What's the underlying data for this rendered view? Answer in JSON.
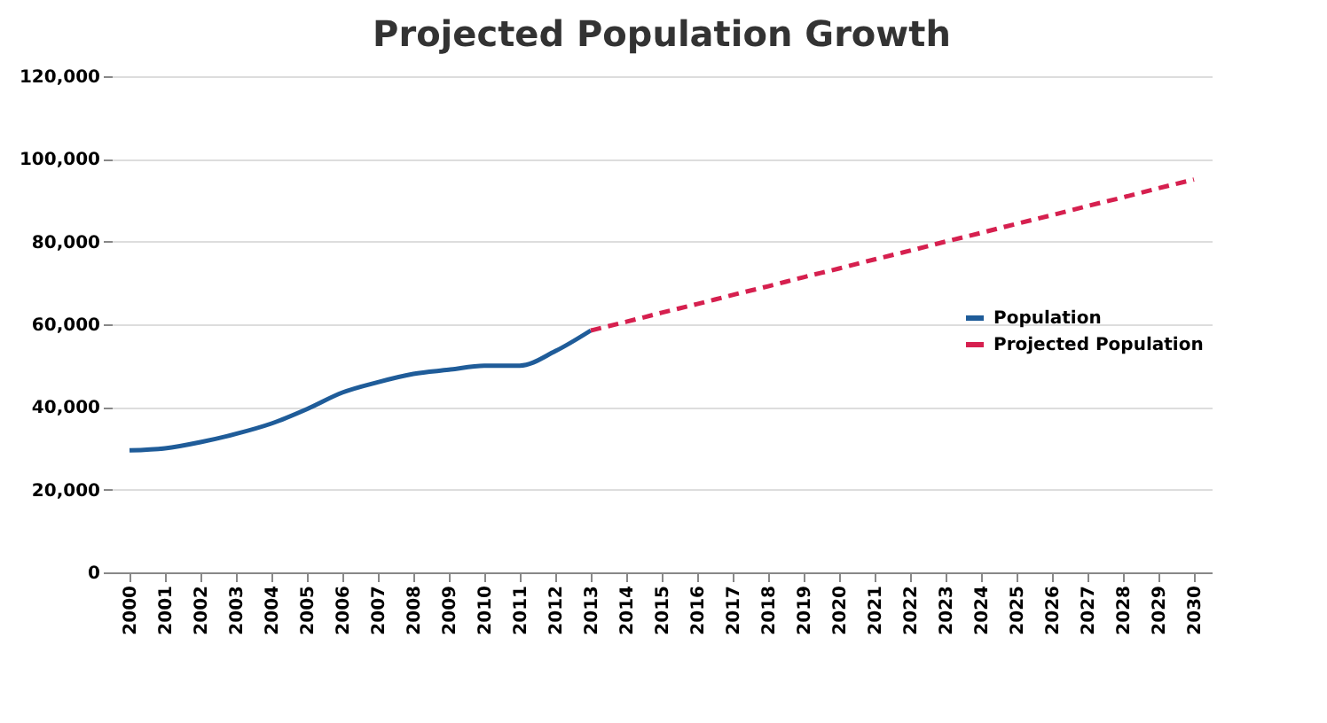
{
  "chart_data": {
    "type": "line",
    "title": "Projected Population Growth",
    "categories": [
      "2000",
      "2001",
      "2002",
      "2003",
      "2004",
      "2005",
      "2006",
      "2007",
      "2008",
      "2009",
      "2010",
      "2011",
      "2012",
      "2013",
      "2014",
      "2015",
      "2016",
      "2017",
      "2018",
      "2019",
      "2020",
      "2021",
      "2022",
      "2023",
      "2024",
      "2025",
      "2026",
      "2027",
      "2028",
      "2029",
      "2030"
    ],
    "series": [
      {
        "name": "Population",
        "color": "#1f5c99",
        "line_style": "solid",
        "values": [
          29500,
          30000,
          31500,
          33500,
          36000,
          39500,
          43500,
          46000,
          48000,
          49000,
          50000,
          50000,
          53500,
          58500,
          null,
          null,
          null,
          null,
          null,
          null,
          null,
          null,
          null,
          null,
          null,
          null,
          null,
          null,
          null,
          null,
          null
        ]
      },
      {
        "name": "Projected Population",
        "color": "#d6204f",
        "line_style": "dashed",
        "values": [
          null,
          null,
          null,
          null,
          null,
          null,
          null,
          null,
          null,
          null,
          null,
          null,
          null,
          58500,
          60600,
          62800,
          64900,
          67100,
          69200,
          71400,
          73500,
          75700,
          77800,
          80000,
          82100,
          84300,
          86400,
          88600,
          90700,
          92900,
          95000
        ]
      }
    ],
    "ylim": [
      0,
      120000
    ],
    "yticks": [
      0,
      {
        "value": 20000,
        "label": "20,000"
      },
      {
        "value": 40000,
        "label": "40,000"
      },
      {
        "value": 60000,
        "label": "60,000"
      },
      {
        "value": 80000,
        "label": "80,000"
      },
      {
        "value": 100000,
        "label": "100,000"
      },
      {
        "value": 120000,
        "label": "120,000"
      }
    ],
    "grid": "y",
    "legend": "right",
    "marker": "none"
  }
}
